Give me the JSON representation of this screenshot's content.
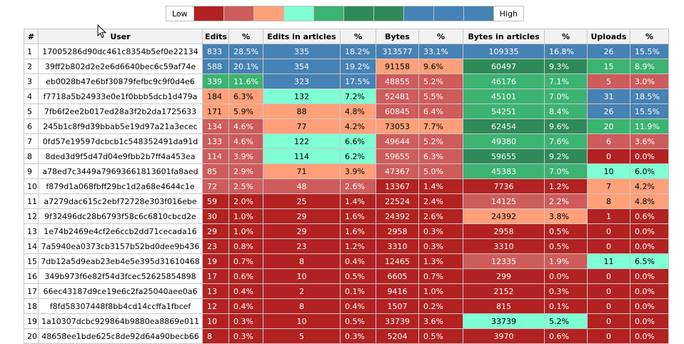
{
  "legend": {
    "low_label": "Low",
    "high_label": "High",
    "colors": [
      "#b22222",
      "#cd5c5c",
      "#ffa07a",
      "#7fffd4",
      "#3cb371",
      "#2e8b57",
      "#2e8b57",
      "#4682b4",
      "#4682b4",
      "#4682b4"
    ]
  },
  "palette": {
    "dark_red": "#b22222",
    "indian_red": "#cd5c5c",
    "salmon": "#ffa07a",
    "aquamarine": "#7fffd4",
    "medium_sea_green": "#3cb371",
    "sea_green": "#2e8b57",
    "steel_blue": "#4682b4"
  },
  "table": {
    "headers": [
      "#",
      "User",
      "Edits",
      "%",
      "Edits in articles",
      "%",
      "Bytes",
      "%",
      "Bytes in articles",
      "%",
      "Uploads",
      "%"
    ],
    "rows": [
      {
        "n": "1",
        "user": "17005286d90dc461c8354b5ef0e22134",
        "edits": "833",
        "edits_pct": "28.5%",
        "ea": "335",
        "ea_pct": "18.2%",
        "bytes": "313577",
        "bytes_pct": "33.1%",
        "ba": "109335",
        "ba_pct": "16.8%",
        "up": "26",
        "up_pct": "15.5%",
        "colors": [
          "#4682b4",
          "#4682b4",
          "#4682b4",
          "#4682b4",
          "#4682b4",
          "#4682b4",
          "#4682b4",
          "#4682b4",
          "#4682b4",
          "#4682b4"
        ]
      },
      {
        "n": "2",
        "user": "39ff2b802d2e2e6d6640bec6c59af74e",
        "edits": "588",
        "edits_pct": "20.1%",
        "ea": "354",
        "ea_pct": "19.2%",
        "bytes": "91158",
        "bytes_pct": "9.6%",
        "ba": "60497",
        "ba_pct": "9.3%",
        "up": "15",
        "up_pct": "8.9%",
        "colors": [
          "#4682b4",
          "#4682b4",
          "#4682b4",
          "#4682b4",
          "#ffa07a",
          "#ffa07a",
          "#2e8b57",
          "#2e8b57",
          "#3cb371",
          "#3cb371"
        ]
      },
      {
        "n": "3",
        "user": "eb0028b47e6bf30879fefbc9c9f0d4e6",
        "edits": "339",
        "edits_pct": "11.6%",
        "ea": "323",
        "ea_pct": "17.5%",
        "bytes": "48855",
        "bytes_pct": "5.2%",
        "ba": "46176",
        "ba_pct": "7.1%",
        "up": "5",
        "up_pct": "3.0%",
        "colors": [
          "#3cb371",
          "#3cb371",
          "#4682b4",
          "#4682b4",
          "#cd5c5c",
          "#cd5c5c",
          "#3cb371",
          "#3cb371",
          "#cd5c5c",
          "#cd5c5c"
        ]
      },
      {
        "n": "4",
        "user": "f7718a5b24933e0e1f0bbb5dcb1d479a",
        "edits": "184",
        "edits_pct": "6.3%",
        "ea": "132",
        "ea_pct": "7.2%",
        "bytes": "52481",
        "bytes_pct": "5.5%",
        "ba": "45101",
        "ba_pct": "7.0%",
        "up": "31",
        "up_pct": "18.5%",
        "colors": [
          "#ffa07a",
          "#ffa07a",
          "#7fffd4",
          "#7fffd4",
          "#cd5c5c",
          "#cd5c5c",
          "#3cb371",
          "#3cb371",
          "#4682b4",
          "#4682b4"
        ]
      },
      {
        "n": "5",
        "user": "7fb6f2ee2b017ed28a3f2b2da1725633",
        "edits": "171",
        "edits_pct": "5.9%",
        "ea": "88",
        "ea_pct": "4.8%",
        "bytes": "60845",
        "bytes_pct": "6.4%",
        "ba": "54251",
        "ba_pct": "8.4%",
        "up": "26",
        "up_pct": "15.5%",
        "colors": [
          "#ffa07a",
          "#ffa07a",
          "#ffa07a",
          "#ffa07a",
          "#cd5c5c",
          "#cd5c5c",
          "#3cb371",
          "#3cb371",
          "#4682b4",
          "#4682b4"
        ]
      },
      {
        "n": "6",
        "user": "245b1c8f9d39bbab5e19d97a21a3ecec",
        "edits": "134",
        "edits_pct": "4.6%",
        "ea": "77",
        "ea_pct": "4.2%",
        "bytes": "73053",
        "bytes_pct": "7.7%",
        "ba": "62454",
        "ba_pct": "9.6%",
        "up": "20",
        "up_pct": "11.9%",
        "colors": [
          "#cd5c5c",
          "#cd5c5c",
          "#ffa07a",
          "#ffa07a",
          "#ffa07a",
          "#ffa07a",
          "#2e8b57",
          "#2e8b57",
          "#3cb371",
          "#3cb371"
        ]
      },
      {
        "n": "7",
        "user": "0fd57e19597dcbcb1c548352491da91d",
        "edits": "133",
        "edits_pct": "4.6%",
        "ea": "122",
        "ea_pct": "6.6%",
        "bytes": "49644",
        "bytes_pct": "5.2%",
        "ba": "49380",
        "ba_pct": "7.6%",
        "up": "6",
        "up_pct": "3.6%",
        "colors": [
          "#cd5c5c",
          "#cd5c5c",
          "#7fffd4",
          "#7fffd4",
          "#cd5c5c",
          "#cd5c5c",
          "#3cb371",
          "#3cb371",
          "#cd5c5c",
          "#cd5c5c"
        ]
      },
      {
        "n": "8",
        "user": "8ded3d9f5d47d04e9fbb2b7ff4a453ea",
        "edits": "114",
        "edits_pct": "3.9%",
        "ea": "114",
        "ea_pct": "6.2%",
        "bytes": "59655",
        "bytes_pct": "6.3%",
        "ba": "59655",
        "ba_pct": "9.2%",
        "up": "0",
        "up_pct": "0.0%",
        "colors": [
          "#cd5c5c",
          "#cd5c5c",
          "#7fffd4",
          "#7fffd4",
          "#cd5c5c",
          "#cd5c5c",
          "#2e8b57",
          "#2e8b57",
          "#b22222",
          "#b22222"
        ]
      },
      {
        "n": "9",
        "user": "a78ed7c3449a79693661813601fa8aed",
        "edits": "85",
        "edits_pct": "2.9%",
        "ea": "71",
        "ea_pct": "3.9%",
        "bytes": "47367",
        "bytes_pct": "5.0%",
        "ba": "45383",
        "ba_pct": "7.0%",
        "up": "10",
        "up_pct": "6.0%",
        "colors": [
          "#cd5c5c",
          "#cd5c5c",
          "#ffa07a",
          "#ffa07a",
          "#cd5c5c",
          "#cd5c5c",
          "#3cb371",
          "#3cb371",
          "#7fffd4",
          "#7fffd4"
        ]
      },
      {
        "n": "10",
        "user": "f879d1a068fbff29bc1d2a68e4644c1e",
        "edits": "72",
        "edits_pct": "2.5%",
        "ea": "48",
        "ea_pct": "2.6%",
        "bytes": "13367",
        "bytes_pct": "1.4%",
        "ba": "7736",
        "ba_pct": "1.2%",
        "up": "7",
        "up_pct": "4.2%",
        "colors": [
          "#cd5c5c",
          "#cd5c5c",
          "#cd5c5c",
          "#cd5c5c",
          "#b22222",
          "#b22222",
          "#b22222",
          "#b22222",
          "#ffa07a",
          "#ffa07a"
        ]
      },
      {
        "n": "11",
        "user": "a7279dac615c2ebf72728e303f016ebe",
        "edits": "59",
        "edits_pct": "2.0%",
        "ea": "25",
        "ea_pct": "1.4%",
        "bytes": "22524",
        "bytes_pct": "2.4%",
        "ba": "14125",
        "ba_pct": "2.2%",
        "up": "8",
        "up_pct": "4.8%",
        "colors": [
          "#b22222",
          "#b22222",
          "#b22222",
          "#b22222",
          "#b22222",
          "#b22222",
          "#cd5c5c",
          "#cd5c5c",
          "#ffa07a",
          "#ffa07a"
        ]
      },
      {
        "n": "12",
        "user": "9f32496dc28b6793f58c6c6810cbcd2e",
        "edits": "30",
        "edits_pct": "1.0%",
        "ea": "29",
        "ea_pct": "1.6%",
        "bytes": "24392",
        "bytes_pct": "2.6%",
        "ba": "24392",
        "ba_pct": "3.8%",
        "up": "1",
        "up_pct": "0.6%",
        "colors": [
          "#b22222",
          "#b22222",
          "#b22222",
          "#b22222",
          "#b22222",
          "#b22222",
          "#ffa07a",
          "#ffa07a",
          "#b22222",
          "#b22222"
        ]
      },
      {
        "n": "13",
        "user": "1e74b2469e4cf2e6ccb2dd71cecada16",
        "edits": "29",
        "edits_pct": "1.0%",
        "ea": "29",
        "ea_pct": "1.6%",
        "bytes": "2958",
        "bytes_pct": "0.3%",
        "ba": "2958",
        "ba_pct": "0.5%",
        "up": "0",
        "up_pct": "0.0%",
        "colors": [
          "#b22222",
          "#b22222",
          "#b22222",
          "#b22222",
          "#b22222",
          "#b22222",
          "#b22222",
          "#b22222",
          "#b22222",
          "#b22222"
        ]
      },
      {
        "n": "14",
        "user": "7a5940ea0373cb3157b52bd0dee9b436",
        "edits": "23",
        "edits_pct": "0.8%",
        "ea": "23",
        "ea_pct": "1.2%",
        "bytes": "3310",
        "bytes_pct": "0.3%",
        "ba": "3310",
        "ba_pct": "0.5%",
        "up": "0",
        "up_pct": "0.0%",
        "colors": [
          "#b22222",
          "#b22222",
          "#b22222",
          "#b22222",
          "#b22222",
          "#b22222",
          "#b22222",
          "#b22222",
          "#b22222",
          "#b22222"
        ]
      },
      {
        "n": "15",
        "user": "7db12a5d9eab23eb4e5e395d31610468",
        "edits": "19",
        "edits_pct": "0.7%",
        "ea": "8",
        "ea_pct": "0.4%",
        "bytes": "12465",
        "bytes_pct": "1.3%",
        "ba": "12335",
        "ba_pct": "1.9%",
        "up": "11",
        "up_pct": "6.5%",
        "colors": [
          "#b22222",
          "#b22222",
          "#b22222",
          "#b22222",
          "#b22222",
          "#b22222",
          "#cd5c5c",
          "#cd5c5c",
          "#7fffd4",
          "#7fffd4"
        ]
      },
      {
        "n": "16",
        "user": "349b973f6e82f54d3fcec52625854898",
        "edits": "17",
        "edits_pct": "0.6%",
        "ea": "10",
        "ea_pct": "0.5%",
        "bytes": "6605",
        "bytes_pct": "0.7%",
        "ba": "299",
        "ba_pct": "0.0%",
        "up": "0",
        "up_pct": "0.0%",
        "colors": [
          "#b22222",
          "#b22222",
          "#b22222",
          "#b22222",
          "#b22222",
          "#b22222",
          "#b22222",
          "#b22222",
          "#b22222",
          "#b22222"
        ]
      },
      {
        "n": "17",
        "user": "66ec43187d9ce19e6c2fa25040aee0a6",
        "edits": "13",
        "edits_pct": "0.4%",
        "ea": "2",
        "ea_pct": "0.1%",
        "bytes": "9416",
        "bytes_pct": "1.0%",
        "ba": "2152",
        "ba_pct": "0.3%",
        "up": "0",
        "up_pct": "0.0%",
        "colors": [
          "#b22222",
          "#b22222",
          "#b22222",
          "#b22222",
          "#b22222",
          "#b22222",
          "#b22222",
          "#b22222",
          "#b22222",
          "#b22222"
        ]
      },
      {
        "n": "18",
        "user": "f8fd58307448f8bb4cd14ccffa1fbcef",
        "edits": "12",
        "edits_pct": "0.4%",
        "ea": "8",
        "ea_pct": "0.4%",
        "bytes": "1507",
        "bytes_pct": "0.2%",
        "ba": "815",
        "ba_pct": "0.1%",
        "up": "0",
        "up_pct": "0.0%",
        "colors": [
          "#b22222",
          "#b22222",
          "#b22222",
          "#b22222",
          "#b22222",
          "#b22222",
          "#b22222",
          "#b22222",
          "#b22222",
          "#b22222"
        ]
      },
      {
        "n": "19",
        "user": "1a10307dcbc929864b9880ea8869e011",
        "edits": "10",
        "edits_pct": "0.3%",
        "ea": "10",
        "ea_pct": "0.5%",
        "bytes": "33739",
        "bytes_pct": "3.6%",
        "ba": "33739",
        "ba_pct": "5.2%",
        "up": "0",
        "up_pct": "0.0%",
        "colors": [
          "#b22222",
          "#b22222",
          "#b22222",
          "#b22222",
          "#b22222",
          "#b22222",
          "#7fffd4",
          "#7fffd4",
          "#b22222",
          "#b22222"
        ]
      },
      {
        "n": "20",
        "user": "48658ee1bde625c8de92d64a90becb66",
        "edits": "8",
        "edits_pct": "0.3%",
        "ea": "5",
        "ea_pct": "0.3%",
        "bytes": "5204",
        "bytes_pct": "0.5%",
        "ba": "3970",
        "ba_pct": "0.6%",
        "up": "0",
        "up_pct": "0.0%",
        "colors": [
          "#b22222",
          "#b22222",
          "#b22222",
          "#b22222",
          "#b22222",
          "#b22222",
          "#b22222",
          "#b22222",
          "#b22222",
          "#b22222"
        ]
      }
    ]
  }
}
